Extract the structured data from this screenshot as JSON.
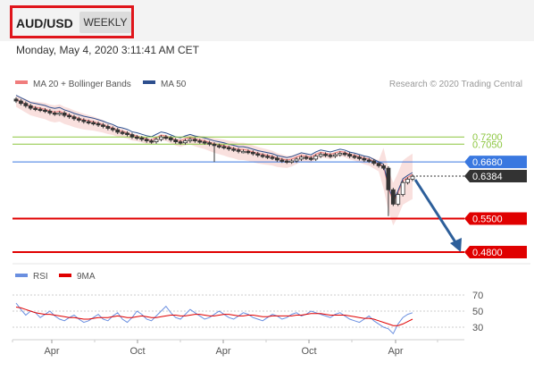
{
  "header": {
    "symbol": "AUD/USD",
    "period": "WEEKLY"
  },
  "datetime": "Monday, May 4, 2020 3:11:41 AM CET",
  "legend": {
    "ma20": "MA 20 + Bollinger Bands",
    "ma50": "MA 50",
    "credit": "Research © 2020 Trading Central"
  },
  "rsi_legend": {
    "rsi": "RSI",
    "ma9": "9MA"
  },
  "colors": {
    "price_candle": "#333333",
    "bollinger_fill": "#f8d8d6",
    "ma20": "#f07c7c",
    "ma50": "#2d4f8e",
    "resistance_green": "#8cc63f",
    "current_blue": "#3a78e0",
    "support_red": "#e00000",
    "arrow": "#2d5f9a",
    "rsi": "#6a8fe0",
    "rsi_ma": "#e00000"
  },
  "chart_data": {
    "type": "candlestick",
    "x_ticks": [
      "Apr",
      "Oct",
      "Apr",
      "Oct",
      "Apr"
    ],
    "price_levels": [
      {
        "value": 0.72,
        "label": "0.7200",
        "kind": "resistance"
      },
      {
        "value": 0.705,
        "label": "0.7050",
        "kind": "resistance"
      },
      {
        "value": 0.668,
        "label": "0.6680",
        "kind": "pivot"
      },
      {
        "value": 0.6384,
        "label": "0.6384",
        "kind": "last"
      },
      {
        "value": 0.55,
        "label": "0.5500",
        "kind": "support"
      },
      {
        "value": 0.48,
        "label": "0.4800",
        "kind": "support"
      }
    ],
    "price_series": [
      0.795,
      0.79,
      0.785,
      0.78,
      0.778,
      0.776,
      0.774,
      0.77,
      0.768,
      0.77,
      0.765,
      0.762,
      0.758,
      0.755,
      0.752,
      0.75,
      0.748,
      0.745,
      0.742,
      0.738,
      0.735,
      0.73,
      0.728,
      0.725,
      0.72,
      0.718,
      0.715,
      0.712,
      0.71,
      0.715,
      0.72,
      0.718,
      0.714,
      0.71,
      0.708,
      0.712,
      0.715,
      0.712,
      0.71,
      0.708,
      0.705,
      0.702,
      0.7,
      0.698,
      0.695,
      0.693,
      0.69,
      0.69,
      0.688,
      0.685,
      0.682,
      0.68,
      0.678,
      0.676,
      0.672,
      0.67,
      0.668,
      0.67,
      0.674,
      0.678,
      0.676,
      0.674,
      0.68,
      0.684,
      0.682,
      0.68,
      0.683,
      0.686,
      0.684,
      0.68,
      0.678,
      0.675,
      0.672,
      0.67,
      0.665,
      0.66,
      0.655,
      0.61,
      0.58,
      0.6,
      0.625,
      0.632,
      0.638
    ],
    "rsi_levels": [
      70,
      50,
      30
    ],
    "rsi_series": [
      60,
      52,
      45,
      50,
      48,
      42,
      46,
      50,
      44,
      40,
      38,
      42,
      45,
      40,
      36,
      38,
      42,
      46,
      40,
      38,
      44,
      48,
      40,
      36,
      42,
      50,
      46,
      40,
      38,
      44,
      50,
      56,
      48,
      42,
      40,
      46,
      52,
      48,
      44,
      40,
      42,
      46,
      50,
      46,
      42,
      40,
      44,
      48,
      46,
      42,
      40,
      38,
      42,
      46,
      44,
      40,
      42,
      46,
      48,
      44,
      46,
      50,
      48,
      46,
      44,
      42,
      46,
      48,
      44,
      40,
      38,
      36,
      40,
      44,
      38,
      34,
      30,
      28,
      22,
      34,
      42,
      46,
      48
    ],
    "rsi_ma_series": [
      55,
      54,
      52,
      50,
      48,
      47,
      46,
      46,
      45,
      44,
      43,
      42,
      42,
      41,
      40,
      40,
      41,
      42,
      42,
      42,
      43,
      44,
      43,
      42,
      42,
      43,
      44,
      43,
      42,
      42,
      43,
      44,
      45,
      45,
      44,
      44,
      45,
      46,
      46,
      45,
      44,
      44,
      45,
      46,
      46,
      45,
      44,
      44,
      45,
      45,
      44,
      43,
      43,
      44,
      44,
      44,
      44,
      44,
      45,
      45,
      46,
      47,
      47,
      47,
      46,
      45,
      45,
      45,
      45,
      44,
      43,
      42,
      41,
      41,
      40,
      38,
      36,
      34,
      32,
      32,
      34,
      37,
      40
    ]
  }
}
